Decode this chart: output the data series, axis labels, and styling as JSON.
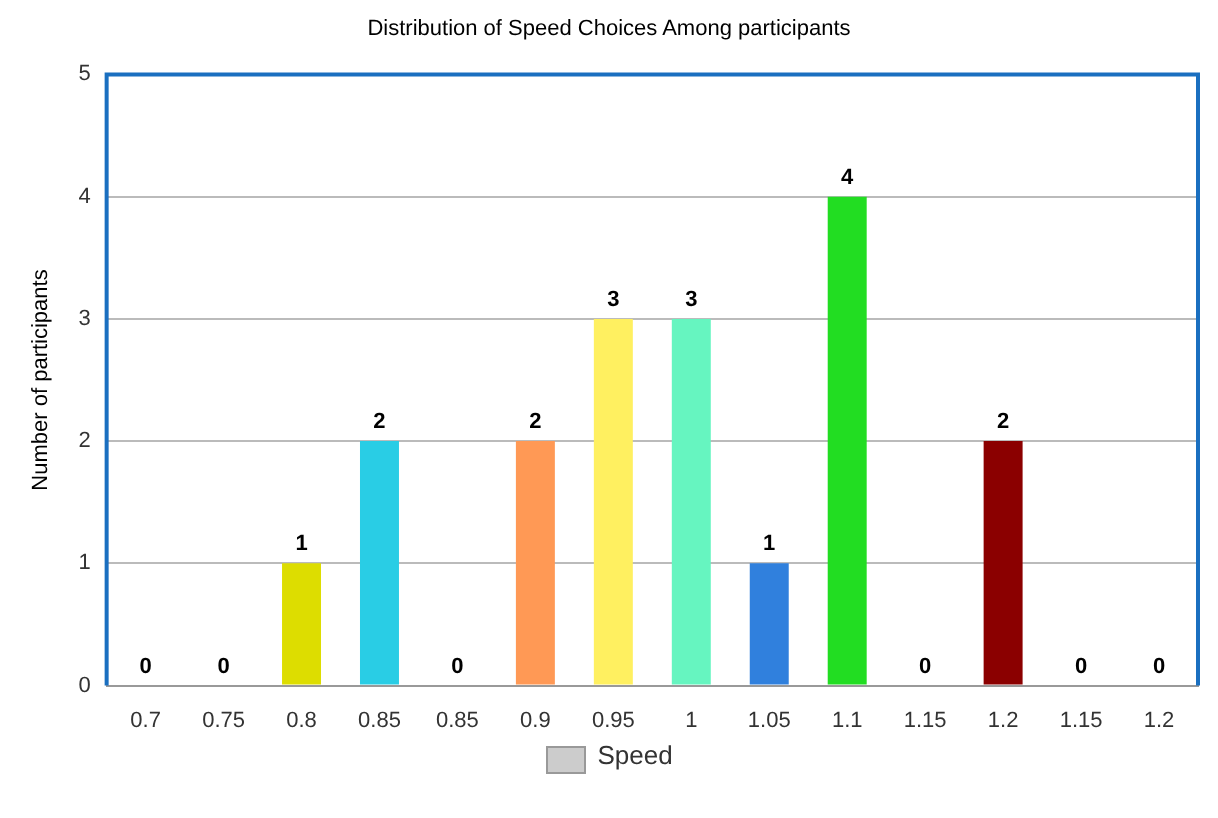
{
  "chart_data": {
    "type": "bar",
    "title": "Distribution of Speed Choices Among participants",
    "ylabel": "Number of participants",
    "categories": [
      "0.7",
      "0.75",
      "0.8",
      "0.85",
      "0.85",
      "0.9",
      "0.95",
      "1",
      "1.05",
      "1.1",
      "1.15",
      "1.2",
      "1.15",
      "1.2"
    ],
    "series": [
      {
        "name": "Speed",
        "color": "#cccccc",
        "values": [
          0,
          0,
          1,
          2,
          0,
          2,
          3,
          3,
          1,
          4,
          0,
          2,
          0,
          0
        ],
        "colors": [
          "#cccccc",
          "#cccccc",
          "#dddd00",
          "#29cde5",
          "#cccccc",
          "#ff9955",
          "#fff060",
          "#66f5c0",
          "#3080dd",
          "#22dd22",
          "#cccccc",
          "#8b0000",
          "#cccccc",
          "#cccccc"
        ]
      }
    ],
    "ylim": [
      0,
      5
    ],
    "yticks": [
      0,
      1,
      2,
      3,
      4,
      5
    ],
    "grid": "y",
    "legend": "bottom",
    "data_labels": true
  }
}
